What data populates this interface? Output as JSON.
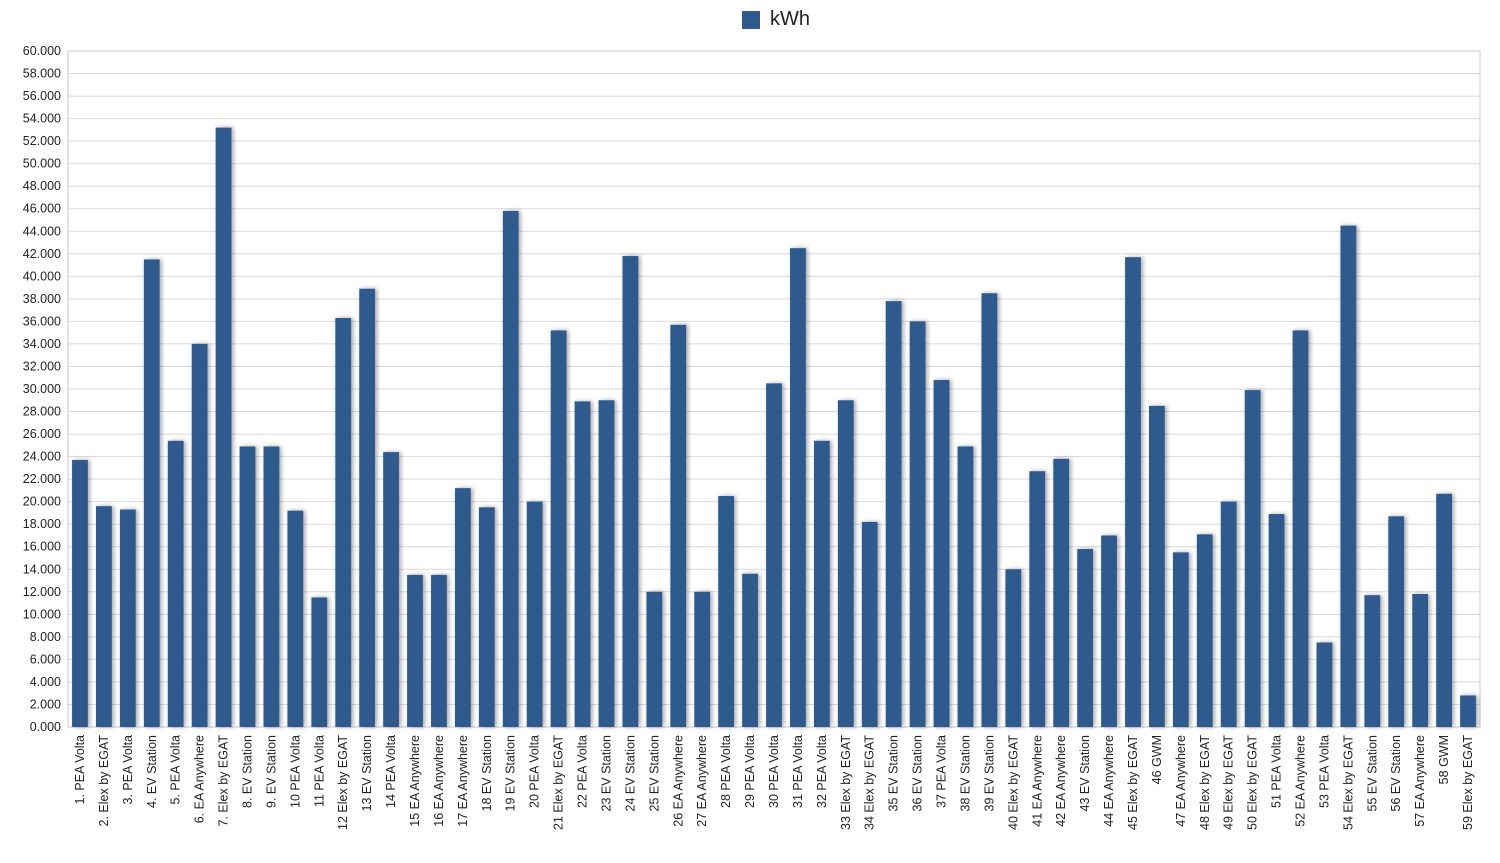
{
  "chart_data": {
    "type": "bar",
    "title": "",
    "xlabel": "",
    "ylabel": "",
    "ylim": [
      0,
      60000
    ],
    "y_ticks": [
      "0.000",
      "2.000",
      "4.000",
      "6.000",
      "8.000",
      "10.000",
      "12.000",
      "14.000",
      "16.000",
      "18.000",
      "20.000",
      "22.000",
      "24.000",
      "26.000",
      "28.000",
      "30.000",
      "32.000",
      "34.000",
      "36.000",
      "38.000",
      "40.000",
      "42.000",
      "44.000",
      "46.000",
      "48.000",
      "50.000",
      "52.000",
      "54.000",
      "56.000",
      "58.000",
      "60.000"
    ],
    "grid": true,
    "legend_position": "top-center",
    "series": [
      {
        "name": "kWh",
        "color": "#2e5a8e",
        "values": [
          23700,
          19600,
          19300,
          41500,
          25400,
          34000,
          53200,
          24900,
          24900,
          19200,
          11500,
          36300,
          38900,
          24400,
          13500,
          13500,
          21200,
          19500,
          45800,
          20000,
          35200,
          28900,
          29000,
          41800,
          12000,
          35700,
          12000,
          20500,
          13600,
          30500,
          42500,
          25400,
          29000,
          18200,
          37800,
          36000,
          30800,
          24900,
          38500,
          14000,
          22700,
          23800,
          15800,
          17000,
          41700,
          28500,
          15500,
          17100,
          20000,
          29900,
          18900,
          35200,
          7500,
          44500,
          11700,
          18700,
          11800,
          20700,
          2800
        ]
      }
    ],
    "categories": [
      "1. PEA Volta",
      "2. Elex by EGAT",
      "3. PEA Volta",
      "4. EV Station",
      "5. PEA Volta",
      "6. EA Anywhere",
      "7. Elex by EGAT",
      "8. EV Station",
      "9. EV Station",
      "10 PEA Volta",
      "11 PEA Volta",
      "12 Elex by EGAT",
      "13 EV Station",
      "14 PEA Volta",
      "15 EA Anywhere",
      "16 EA Anywhere",
      "17 EA Anywhere",
      "18 EV Station",
      "19 EV Station",
      "20 PEA Volta",
      "21 Elex by EGAT",
      "22 PEA Volta",
      "23 EV Station",
      "24 EV Station",
      "25 EV Station",
      "26 EA Anywhere",
      "27 EA Anywhere",
      "28 PEA Volta",
      "29 PEA Volta",
      "30 PEA Volta",
      "31 PEA Volta",
      "32 PEA Volta",
      "33 Elex by EGAT",
      "34 Elex by EGAT",
      "35 EV Station",
      "36 EV Station",
      "37 PEA Volta",
      "38 EV Station",
      "39 EV Station",
      "40 Elex by EGAT",
      "41 EA Anywhere",
      "42 EA Anywhere",
      "43 EV Station",
      "44 EA Anywhere",
      "45 Elex by EGAT",
      "46 GWM",
      "47 EA Anywhere",
      "48 Elex by EGAT",
      "49 Elex by EGAT",
      "50 Elex by EGAT",
      "51 PEA Volta",
      "52 EA Anywhere",
      "53 PEA Volta",
      "54 Elex by EGAT",
      "55 EV Station",
      "56 EV Station",
      "57 EA Anywhere",
      "58 GWM",
      "59 Elex by EGAT"
    ]
  }
}
